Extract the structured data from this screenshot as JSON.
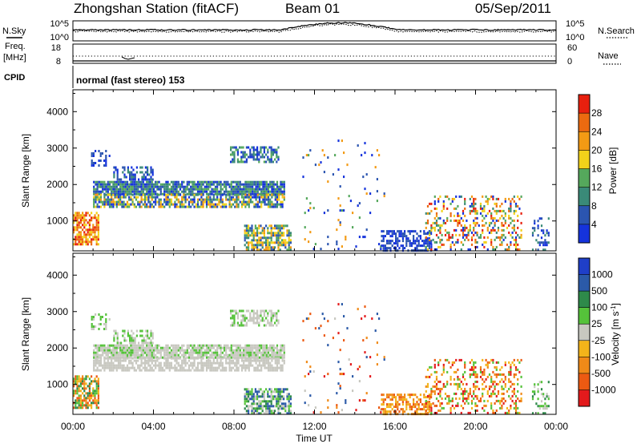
{
  "header": {
    "title": "Zhongshan Station (fitACF)",
    "beam": "Beam 01",
    "date": "05/Sep/2011"
  },
  "noise_panel": {
    "left_label": "N.Sky",
    "right_label": "N.Search",
    "left_ticks": [
      "10^5",
      "10^0"
    ],
    "right_ticks": [
      "10^5",
      "10^0"
    ]
  },
  "freq_panel": {
    "left_label_1": "Freq.",
    "left_label_2": "[MHz]",
    "left_ticks": [
      "18",
      "8"
    ],
    "right_label": "Nave",
    "right_ticks": [
      "60",
      "0"
    ]
  },
  "cpid": {
    "label": "CPID",
    "text": "normal (fast stereo) 153"
  },
  "colors": {
    "power": [
      "#1533dc",
      "#2b55b0",
      "#3a8a78",
      "#55a85c",
      "#f2d21a",
      "#f39a14",
      "#ec6a10",
      "#e8200e"
    ],
    "velocity": [
      "#e31a1c",
      "#ec5a12",
      "#f08a18",
      "#f3b41a",
      "#c8c8c0",
      "#55c23a",
      "#2e8a4a",
      "#2b5aa8",
      "#1f3fc8"
    ]
  },
  "chart_data": [
    {
      "type": "heatmap",
      "title": "Power",
      "xlabel": "Time UT",
      "ylabel": "Slant Range [km]",
      "colorbar_label": "Power [dB]",
      "x_ticks": [
        "00:00",
        "04:00",
        "08:00",
        "12:00",
        "16:00",
        "20:00",
        "00:00"
      ],
      "x_range_hours": [
        0,
        24
      ],
      "y_ticks": [
        1000,
        2000,
        3000,
        4000
      ],
      "y_range_km": [
        180,
        4600
      ],
      "colorbar_ticks": [
        "4",
        "8",
        "12",
        "16",
        "20",
        "24",
        "28"
      ],
      "colorbar_range": [
        0,
        32
      ],
      "scatter_regions": [
        {
          "t0": 0.0,
          "t1": 1.3,
          "r0": 350,
          "r1": 1250,
          "density": 0.75,
          "levels": [
            4,
            5,
            6,
            7
          ]
        },
        {
          "t0": 0.9,
          "t1": 1.8,
          "r0": 2500,
          "r1": 2950,
          "density": 0.35,
          "levels": [
            0,
            1
          ]
        },
        {
          "t0": 1.0,
          "t1": 10.5,
          "r0": 1750,
          "r1": 2100,
          "density": 0.85,
          "levels": [
            0,
            1,
            2,
            3
          ]
        },
        {
          "t0": 1.0,
          "t1": 10.5,
          "r0": 1400,
          "r1": 1750,
          "density": 0.7,
          "levels": [
            0,
            1,
            2,
            3,
            4,
            5
          ]
        },
        {
          "t0": 2.0,
          "t1": 4.0,
          "r0": 2150,
          "r1": 2500,
          "density": 0.55,
          "levels": [
            0,
            1,
            2
          ]
        },
        {
          "t0": 7.8,
          "t1": 10.2,
          "r0": 2600,
          "r1": 3050,
          "density": 0.55,
          "levels": [
            0,
            1,
            2,
            3
          ]
        },
        {
          "t0": 8.5,
          "t1": 10.8,
          "r0": 200,
          "r1": 900,
          "density": 0.7,
          "levels": [
            1,
            2,
            3,
            4,
            5
          ]
        },
        {
          "t0": 11.4,
          "t1": 15.5,
          "r0": 200,
          "r1": 3300,
          "density": 0.035,
          "levels": [
            0,
            1,
            3,
            5
          ]
        },
        {
          "t0": 15.3,
          "t1": 17.8,
          "r0": 200,
          "r1": 750,
          "density": 0.6,
          "levels": [
            0,
            1
          ]
        },
        {
          "t0": 17.5,
          "t1": 22.3,
          "r0": 200,
          "r1": 1700,
          "density": 0.3,
          "levels": [
            0,
            2,
            3,
            4,
            5,
            6,
            7
          ]
        },
        {
          "t0": 22.8,
          "t1": 23.6,
          "r0": 200,
          "r1": 1100,
          "density": 0.3,
          "levels": [
            0,
            1,
            2
          ]
        }
      ]
    },
    {
      "type": "heatmap",
      "title": "Velocity",
      "xlabel": "Time UT",
      "ylabel": "Slant Range [km]",
      "colorbar_label": "Velocity [m s^-1]",
      "x_ticks": [
        "00:00",
        "04:00",
        "08:00",
        "12:00",
        "16:00",
        "20:00",
        "00:00"
      ],
      "x_range_hours": [
        0,
        24
      ],
      "y_ticks": [
        1000,
        2000,
        3000,
        4000
      ],
      "y_range_km": [
        180,
        4600
      ],
      "colorbar_ticks": [
        "-1000",
        "-500",
        "-100",
        "-25",
        "25",
        "100",
        "500",
        "1000"
      ],
      "scatter_regions": [
        {
          "t0": 0.0,
          "t1": 1.3,
          "r0": 350,
          "r1": 1250,
          "density": 0.75,
          "levels": [
            1,
            2,
            3,
            5,
            6
          ]
        },
        {
          "t0": 0.9,
          "t1": 1.8,
          "r0": 2500,
          "r1": 2950,
          "density": 0.35,
          "levels": [
            4,
            5
          ]
        },
        {
          "t0": 1.0,
          "t1": 10.5,
          "r0": 1750,
          "r1": 2100,
          "density": 0.85,
          "levels": [
            4,
            4,
            4,
            5
          ]
        },
        {
          "t0": 1.0,
          "t1": 10.5,
          "r0": 1400,
          "r1": 1750,
          "density": 0.7,
          "levels": [
            4,
            4,
            4,
            4
          ]
        },
        {
          "t0": 2.0,
          "t1": 4.0,
          "r0": 2150,
          "r1": 2500,
          "density": 0.55,
          "levels": [
            4,
            5
          ]
        },
        {
          "t0": 7.8,
          "t1": 10.2,
          "r0": 2600,
          "r1": 3050,
          "density": 0.55,
          "levels": [
            4,
            4,
            5
          ]
        },
        {
          "t0": 8.5,
          "t1": 10.8,
          "r0": 200,
          "r1": 900,
          "density": 0.7,
          "levels": [
            5,
            6,
            7,
            4
          ]
        },
        {
          "t0": 11.4,
          "t1": 15.5,
          "r0": 200,
          "r1": 3300,
          "density": 0.035,
          "levels": [
            0,
            1,
            2,
            4,
            7
          ]
        },
        {
          "t0": 15.3,
          "t1": 17.8,
          "r0": 200,
          "r1": 750,
          "density": 0.6,
          "levels": [
            1,
            2,
            3
          ]
        },
        {
          "t0": 17.5,
          "t1": 22.3,
          "r0": 200,
          "r1": 1700,
          "density": 0.3,
          "levels": [
            0,
            1,
            2,
            3,
            5
          ]
        },
        {
          "t0": 22.8,
          "t1": 23.6,
          "r0": 200,
          "r1": 1100,
          "density": 0.3,
          "levels": [
            4,
            5,
            6
          ]
        }
      ]
    }
  ]
}
